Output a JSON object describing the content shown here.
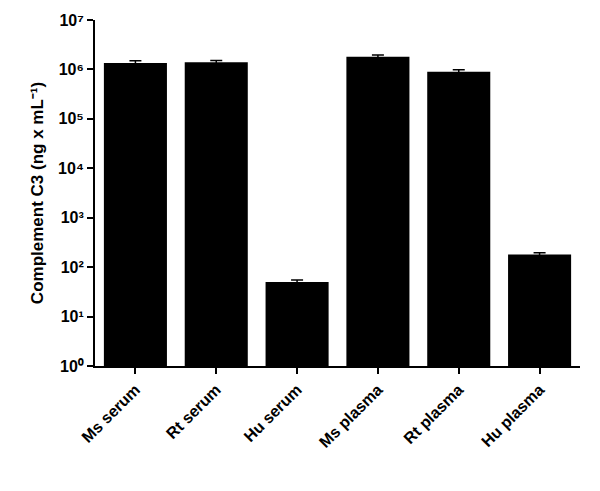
{
  "chart_data": {
    "type": "bar",
    "y_label": "Complement C3 (ng x mL⁻¹)",
    "categories": [
      "Ms serum",
      "Rt serum",
      "Hu serum",
      "Ms plasma",
      "Rt plasma",
      "Hu plasma"
    ],
    "values": [
      1350000,
      1400000,
      50,
      1800000,
      900000,
      180
    ],
    "errors": [
      150000,
      120000,
      5,
      150000,
      80000,
      15
    ],
    "color": "#000000",
    "log": "y",
    "grid": false,
    "ylim": [
      1,
      10000000
    ],
    "yticks": [
      {
        "value": 1,
        "label": "10⁰"
      },
      {
        "value": 10,
        "label": "10¹"
      },
      {
        "value": 100,
        "label": "10²"
      },
      {
        "value": 1000,
        "label": "10³"
      },
      {
        "value": 10000,
        "label": "10⁴"
      },
      {
        "value": 100000,
        "label": "10⁵"
      },
      {
        "value": 1000000,
        "label": "10⁶"
      },
      {
        "value": 10000000,
        "label": "10⁷"
      }
    ]
  }
}
